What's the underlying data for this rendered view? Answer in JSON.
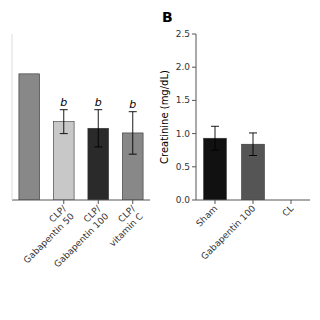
{
  "chart_data": [
    {
      "type": "bar",
      "categories": [
        null,
        "CLP/\nGabapentin 50",
        "CLP/\nGabapentin 100",
        "CLP/\nvitamin C"
      ],
      "values": [
        1.9,
        1.18,
        1.08,
        1.01
      ],
      "errors": [
        null,
        0.18,
        0.28,
        0.32
      ],
      "colors": [
        "#888888",
        "#c8c8c8",
        "#2a2a2a",
        "#888888"
      ],
      "annotations": [
        null,
        "b",
        "b",
        "b"
      ],
      "ylim": [
        0,
        2.5
      ],
      "tick_labels": "x",
      "grid": false
    },
    {
      "type": "bar",
      "title": "B",
      "y_label": "Creatinine (mg/dL)",
      "categories": [
        "Sham",
        "Gabapentin 100",
        "CL"
      ],
      "values": [
        0.93,
        0.84,
        null
      ],
      "errors": [
        0.18,
        0.17,
        null
      ],
      "colors": [
        "#111111",
        "#555555",
        null
      ],
      "ylim": [
        0.0,
        2.5
      ],
      "yticks": [
        {
          "value": 0.0,
          "label": "0.0"
        },
        {
          "value": 0.5,
          "label": "0.5"
        },
        {
          "value": 1.0,
          "label": "1.0"
        },
        {
          "value": 1.5,
          "label": "1.5"
        },
        {
          "value": 2.0,
          "label": "2.0"
        },
        {
          "value": 2.5,
          "label": "2.5"
        }
      ],
      "grid": false
    }
  ]
}
